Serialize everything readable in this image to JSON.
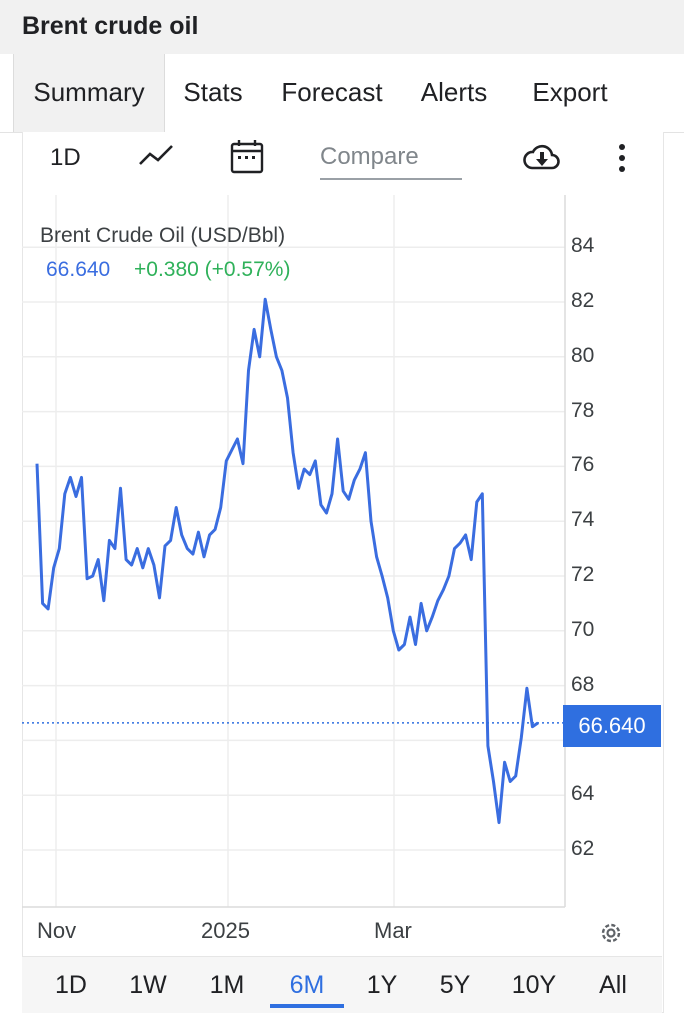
{
  "app": {
    "title": "Brent crude oil"
  },
  "tabs": [
    {
      "label": "Summary",
      "active": true
    },
    {
      "label": "Stats"
    },
    {
      "label": "Forecast"
    },
    {
      "label": "Alerts"
    },
    {
      "label": "Export"
    }
  ],
  "toolbar": {
    "interval": "1D",
    "compare_placeholder": "Compare",
    "icons": [
      "line-chart-icon",
      "calendar-icon",
      "cloud-download-icon",
      "more-vert-icon"
    ]
  },
  "legend": {
    "name": "Brent Crude Oil (USD/Bbl)",
    "last": "66.640",
    "change": "+0.380 (+0.57%)"
  },
  "price_tag": "66.640",
  "ranges": [
    {
      "label": "1D"
    },
    {
      "label": "1W"
    },
    {
      "label": "1M"
    },
    {
      "label": "6M",
      "active": true
    },
    {
      "label": "1Y"
    },
    {
      "label": "5Y"
    },
    {
      "label": "10Y"
    },
    {
      "label": "All"
    }
  ],
  "colors": {
    "accent": "#2f6fe0",
    "up": "#2fb15a",
    "line": "#3a6de0"
  },
  "chart_data": {
    "type": "line",
    "title": "Brent Crude Oil (USD/Bbl)",
    "xlabel": "",
    "ylabel": "",
    "ylim": [
      60,
      86
    ],
    "yticks": [
      "62",
      "64",
      "68",
      "70",
      "72",
      "74",
      "76",
      "78",
      "80",
      "82",
      "84"
    ],
    "xticks": [
      "Nov",
      "2025",
      "Mar"
    ],
    "last_value": 66.64,
    "grid": true,
    "series": [
      {
        "name": "Brent Crude Oil (USD/Bbl)",
        "values": [
          76.1,
          71.0,
          70.8,
          72.3,
          73.0,
          75.0,
          75.6,
          74.9,
          75.6,
          71.9,
          72.0,
          72.6,
          71.1,
          73.3,
          73.0,
          75.2,
          72.6,
          72.4,
          73.0,
          72.3,
          73.0,
          72.4,
          71.2,
          73.1,
          73.3,
          74.5,
          73.5,
          73.0,
          72.8,
          73.6,
          72.7,
          73.5,
          73.7,
          74.5,
          76.2,
          76.6,
          77.0,
          76.1,
          79.5,
          81.0,
          80.0,
          82.1,
          81.0,
          80.0,
          79.5,
          78.5,
          76.5,
          75.2,
          75.9,
          75.7,
          76.2,
          74.6,
          74.3,
          75.0,
          77.0,
          75.1,
          74.8,
          75.5,
          75.9,
          76.5,
          74.0,
          72.7,
          72.0,
          71.2,
          70.0,
          69.3,
          69.5,
          70.5,
          69.5,
          71.0,
          70.0,
          70.5,
          71.1,
          71.5,
          72.0,
          73.0,
          73.2,
          73.5,
          72.6,
          74.7,
          75.0,
          65.8,
          64.5,
          63.0,
          65.2,
          64.5,
          64.7,
          66.1,
          67.9,
          66.5,
          66.64
        ]
      }
    ]
  }
}
